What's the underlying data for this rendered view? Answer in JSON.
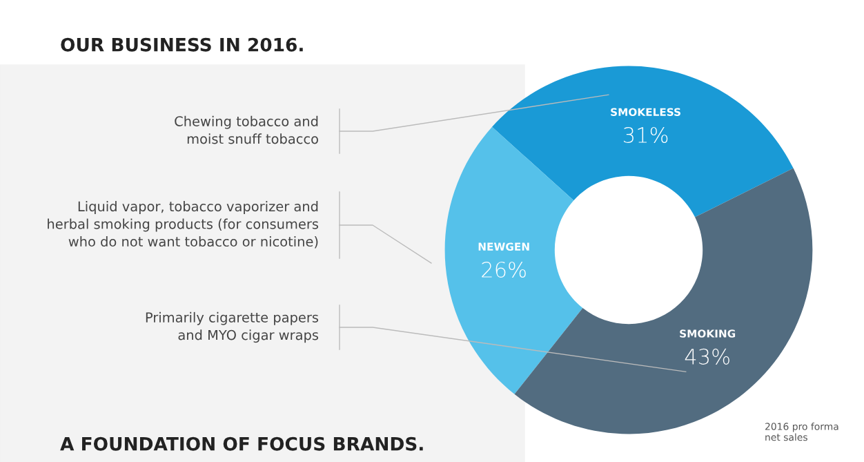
{
  "chart_data": {
    "type": "donut",
    "title": "OUR BUSINESS IN 2016.",
    "categories": [
      "SMOKELESS",
      "NEWGEN",
      "SMOKING"
    ],
    "values": [
      31,
      26,
      43
    ],
    "value_labels": [
      "31%",
      "26%",
      "43%"
    ],
    "colors": [
      "#1a9ad6",
      "#55c1ea",
      "#526c80"
    ],
    "annotations": [
      "Chewing tobacco and\nmoist snuff tobacco",
      "Liquid vapor, tobacco vaporizer and\nherbal smoking products (for consumers\nwho do not want tobacco or nicotine)",
      "Primarily cigarette papers\nand MYO cigar wraps",
      "2016 pro forma\nnet sales",
      "A FOUNDATION OF FOCUS BRANDS."
    ]
  }
}
